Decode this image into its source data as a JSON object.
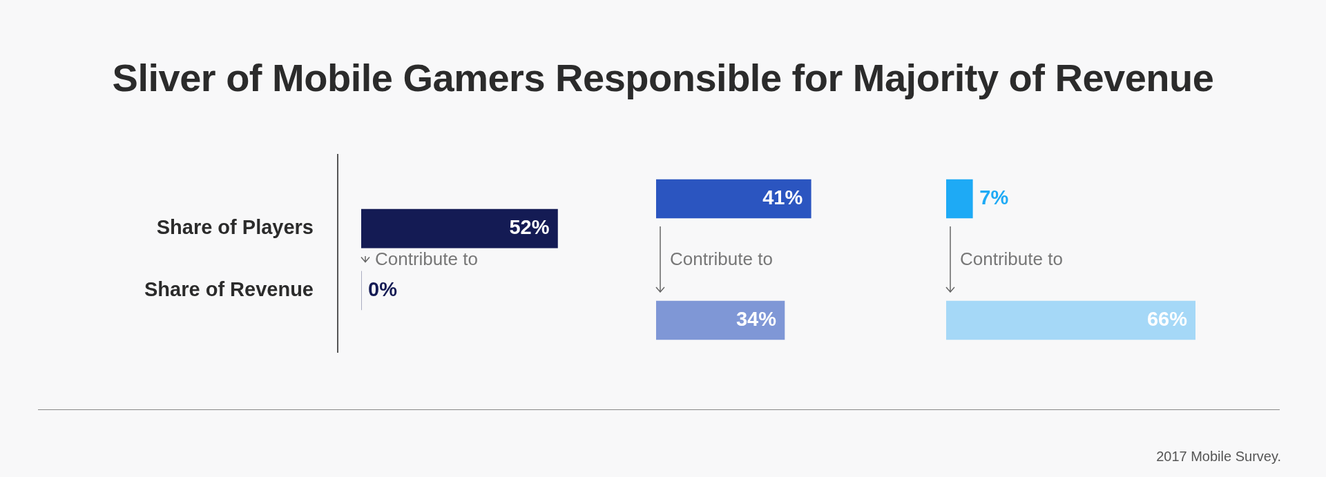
{
  "chart_data": [
    {
      "type": "bar",
      "orientation": "horizontal",
      "title": "Sliver of Mobile Gamers Responsible for Majority of Revenue",
      "categories": [
        "Share of Players",
        "Share of Revenue"
      ],
      "values": [
        52,
        0
      ],
      "colors": [
        "#141b54",
        "#141b54"
      ],
      "value_labels": [
        "52%",
        "0%"
      ],
      "tick_labels": "y",
      "grid": false,
      "legend": false,
      "annotations": [
        "Contribute to",
        "2017 Mobile Survey."
      ]
    },
    {
      "type": "bar",
      "orientation": "horizontal",
      "categories": [
        null,
        null
      ],
      "values": [
        41,
        34
      ],
      "colors": [
        "#2b55c0",
        "#7f97d6"
      ],
      "value_labels": [
        "41%",
        "34%"
      ],
      "tick_labels": false,
      "grid": false,
      "legend": false,
      "annotations": [
        "Contribute to"
      ]
    },
    {
      "type": "bar",
      "orientation": "horizontal",
      "categories": [
        null,
        null
      ],
      "values": [
        7,
        66
      ],
      "colors": [
        "#1eaaf5",
        "#a5d8f7"
      ],
      "value_labels": [
        "7%",
        "66%"
      ],
      "tick_labels": false,
      "grid": false,
      "legend": false,
      "annotations": [
        "Contribute to"
      ]
    }
  ]
}
